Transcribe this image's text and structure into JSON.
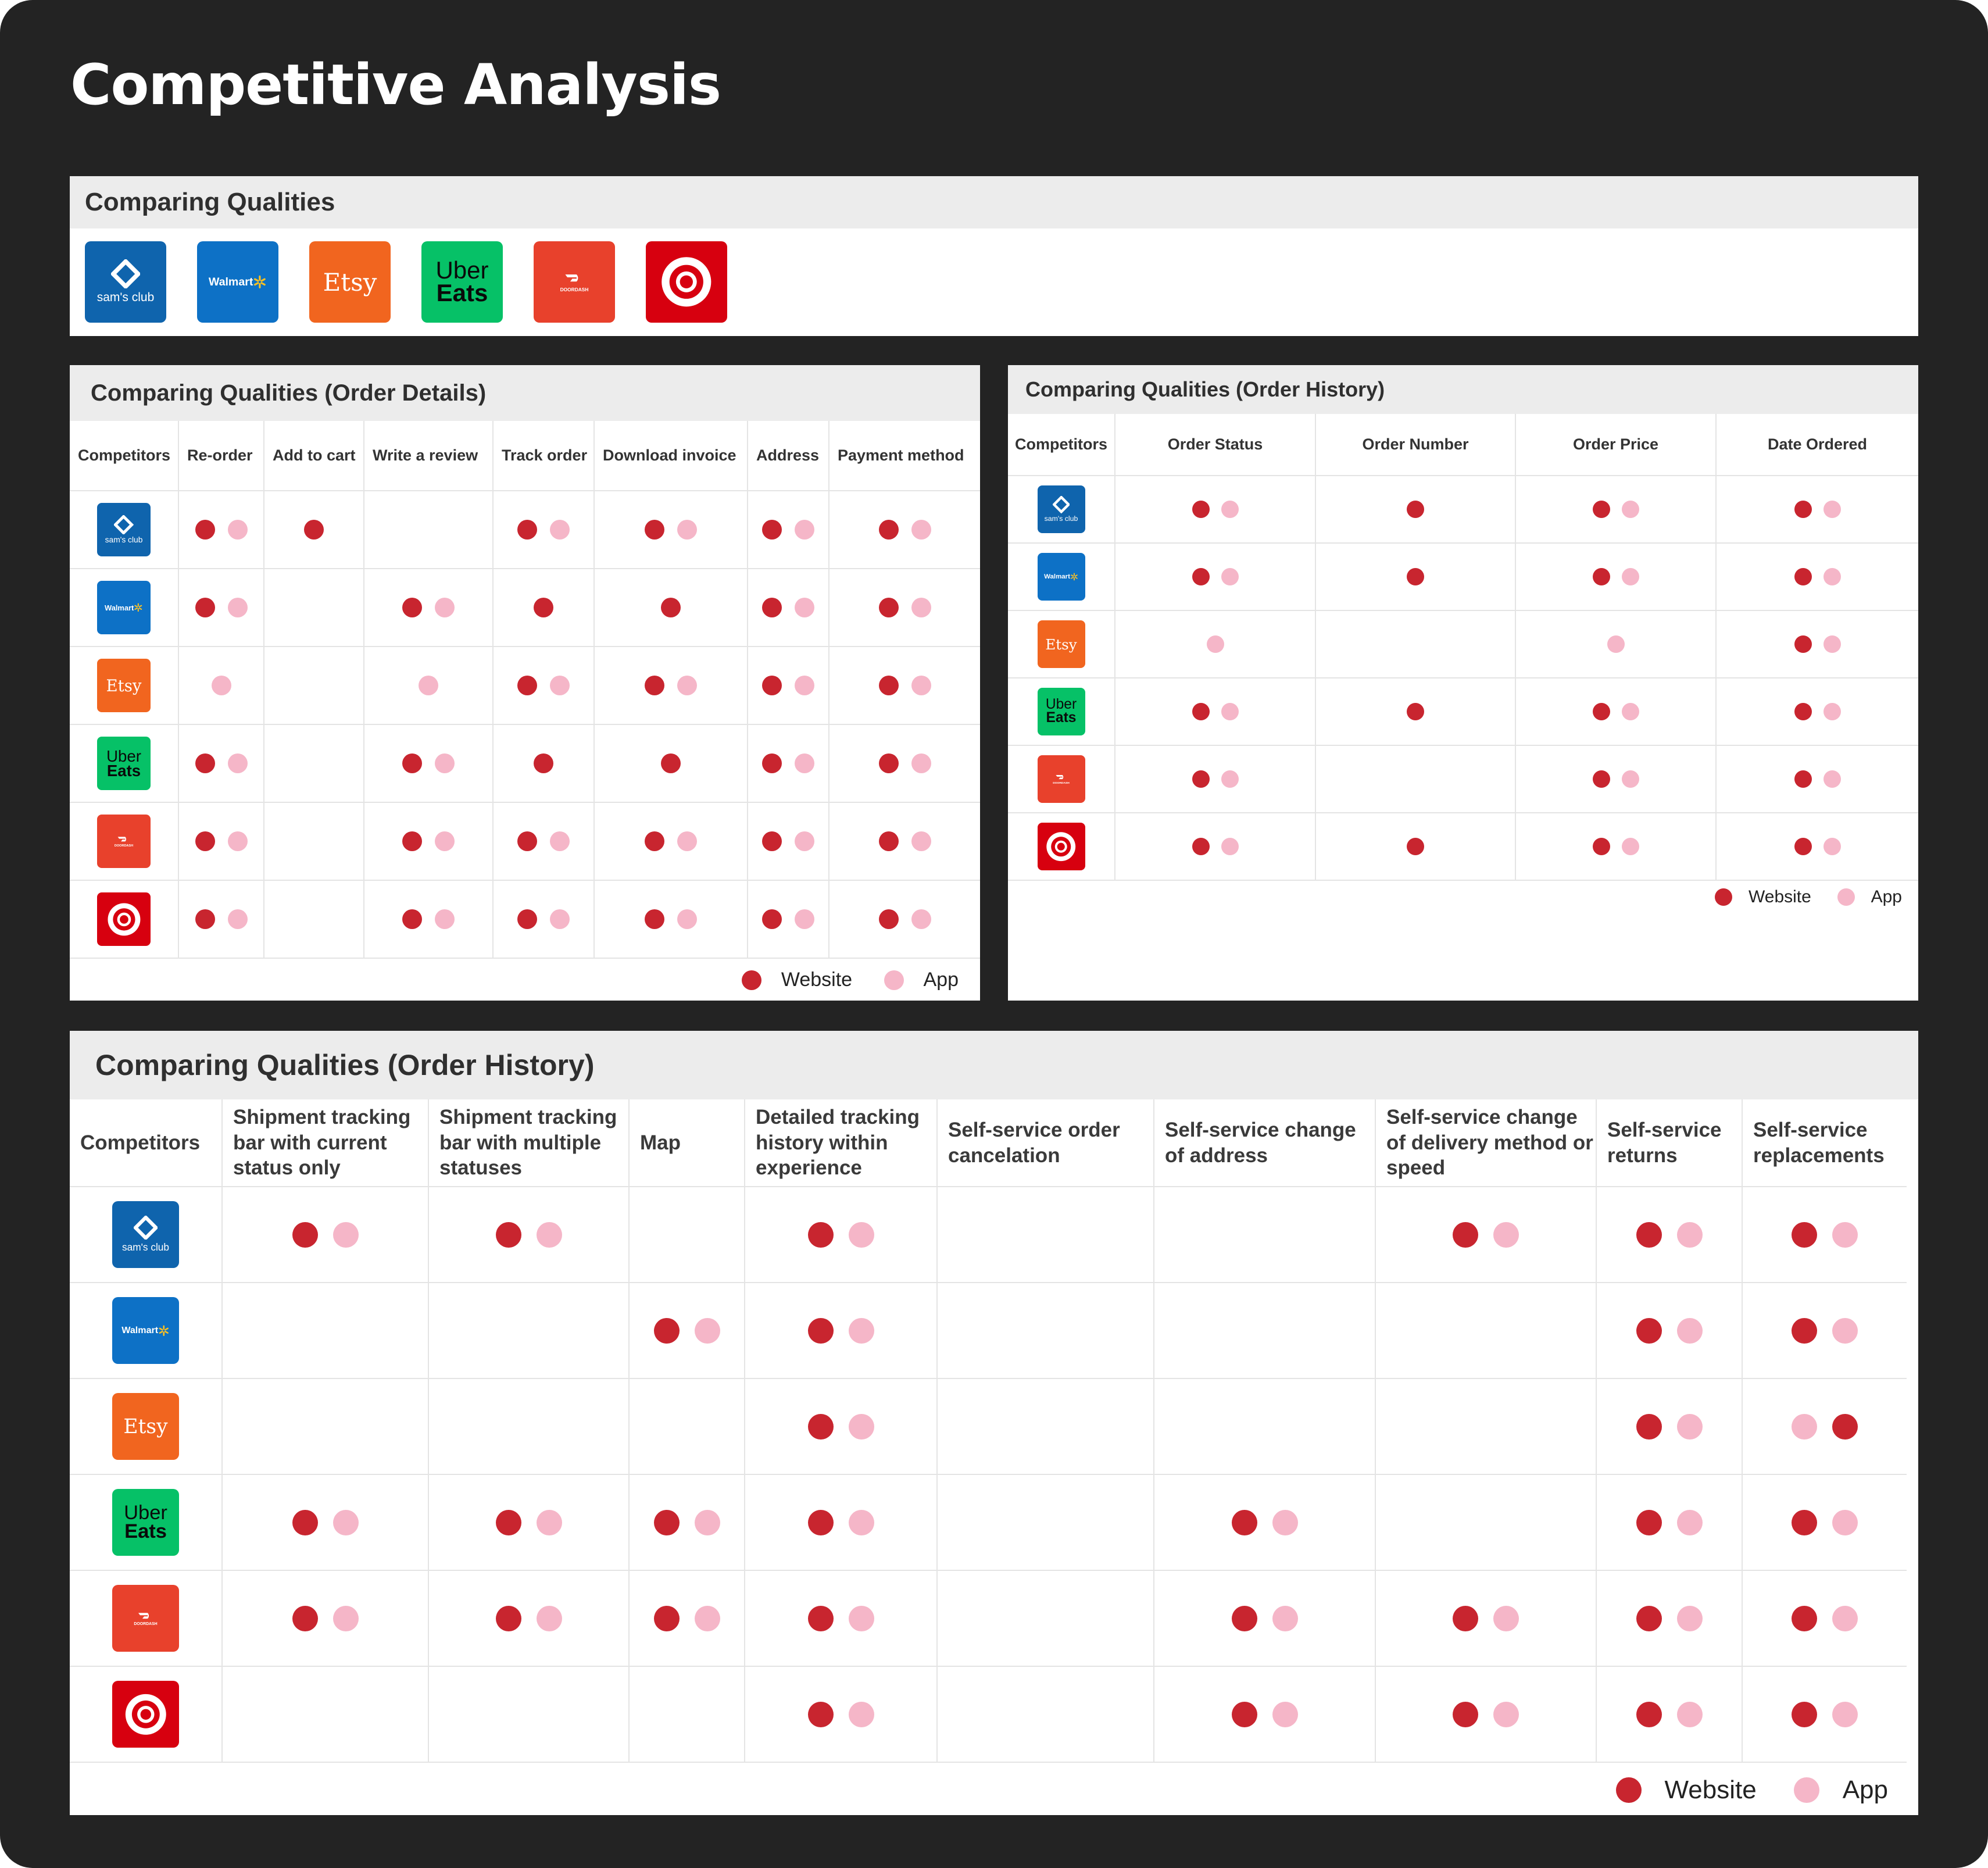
{
  "page": {
    "title": "Competitive Analysis"
  },
  "brands": {
    "sams": {
      "name": "Sam's Club",
      "text": "sam's club",
      "color": "#0f64ad"
    },
    "walmart": {
      "name": "Walmart",
      "text": "Walmart",
      "color": "#0d71c6"
    },
    "etsy": {
      "name": "Etsy",
      "text": "Etsy",
      "color": "#f1651f"
    },
    "uber": {
      "name": "Uber Eats",
      "line1": "Uber",
      "line2": "Eats",
      "color": "#06c167"
    },
    "door": {
      "name": "DoorDash",
      "text": "DOORDASH",
      "color": "#e8412c"
    },
    "target": {
      "name": "Target",
      "color": "#d7000f"
    }
  },
  "legend": {
    "website": "Website",
    "app": "App",
    "website_color": "#c8252f",
    "app_color": "#f5b6c8"
  },
  "overview": {
    "title": "Comparing Qualities",
    "logos": [
      "sams",
      "walmart",
      "etsy",
      "uber",
      "door",
      "target"
    ]
  },
  "order_details": {
    "title": "Comparing Qualities (Order Details)",
    "columns": [
      "Competitors",
      "Re-order",
      "Add to cart",
      "Write a review",
      "Track order",
      "Download invoice",
      "Address",
      "Payment method"
    ],
    "rows": [
      {
        "brand": "sams",
        "cells": [
          "WA",
          "W",
          "",
          "WA",
          "WA",
          "WA",
          "WA"
        ]
      },
      {
        "brand": "walmart",
        "cells": [
          "WA",
          "",
          "WA",
          "W",
          "W",
          "WA",
          "WA"
        ]
      },
      {
        "brand": "etsy",
        "cells": [
          "A",
          "",
          "A",
          "WA",
          "WA",
          "WA",
          "WA"
        ]
      },
      {
        "brand": "uber",
        "cells": [
          "WA",
          "",
          "WA",
          "W",
          "W",
          "WA",
          "WA"
        ]
      },
      {
        "brand": "door",
        "cells": [
          "WA",
          "",
          "WA",
          "WA",
          "WA",
          "WA",
          "WA"
        ]
      },
      {
        "brand": "target",
        "cells": [
          "WA",
          "",
          "WA",
          "WA",
          "WA",
          "WA",
          "WA"
        ]
      }
    ]
  },
  "order_history": {
    "title": "Comparing Qualities (Order History)",
    "columns": [
      "Competitors",
      "Order Status",
      "Order Number",
      "Order Price",
      "Date Ordered"
    ],
    "rows": [
      {
        "brand": "sams",
        "cells": [
          "WA",
          "W",
          "WA",
          "WA"
        ]
      },
      {
        "brand": "walmart",
        "cells": [
          "WA",
          "W",
          "WA",
          "WA"
        ]
      },
      {
        "brand": "etsy",
        "cells": [
          "A",
          "",
          "A",
          "WA"
        ]
      },
      {
        "brand": "uber",
        "cells": [
          "WA",
          "W",
          "WA",
          "WA"
        ]
      },
      {
        "brand": "door",
        "cells": [
          "WA",
          "",
          "WA",
          "WA"
        ]
      },
      {
        "brand": "target",
        "cells": [
          "WA",
          "W",
          "WA",
          "WA"
        ]
      }
    ]
  },
  "order_history_wide": {
    "title": "Comparing Qualities (Order History)",
    "columns": [
      "Competitors",
      "Shipment tracking bar with current status only",
      "Shipment tracking bar with multiple statuses",
      "Map",
      "Detailed tracking history within experience",
      "Self-service order cancelation",
      "Self-service change of address",
      "Self-service change of delivery method or speed",
      "Self-service returns",
      "Self-service replacements"
    ],
    "rows": [
      {
        "brand": "sams",
        "cells": [
          "WA",
          "WA",
          "",
          "WA",
          "",
          "",
          "WA",
          "WA",
          "WA"
        ]
      },
      {
        "brand": "walmart",
        "cells": [
          "",
          "",
          "WA",
          "WA",
          "",
          "",
          "",
          "WA",
          "WA"
        ]
      },
      {
        "brand": "etsy",
        "cells": [
          "",
          "",
          "",
          "WA",
          "",
          "",
          "",
          "WA",
          "AW"
        ]
      },
      {
        "brand": "uber",
        "cells": [
          "WA",
          "WA",
          "WA",
          "WA",
          "",
          "WA",
          "",
          "WA",
          "WA"
        ]
      },
      {
        "brand": "door",
        "cells": [
          "WA",
          "WA",
          "WA",
          "WA",
          "",
          "WA",
          "WA",
          "WA",
          "WA"
        ]
      },
      {
        "brand": "target",
        "cells": [
          "",
          "",
          "",
          "WA",
          "",
          "WA",
          "WA",
          "WA",
          "WA"
        ]
      }
    ]
  }
}
